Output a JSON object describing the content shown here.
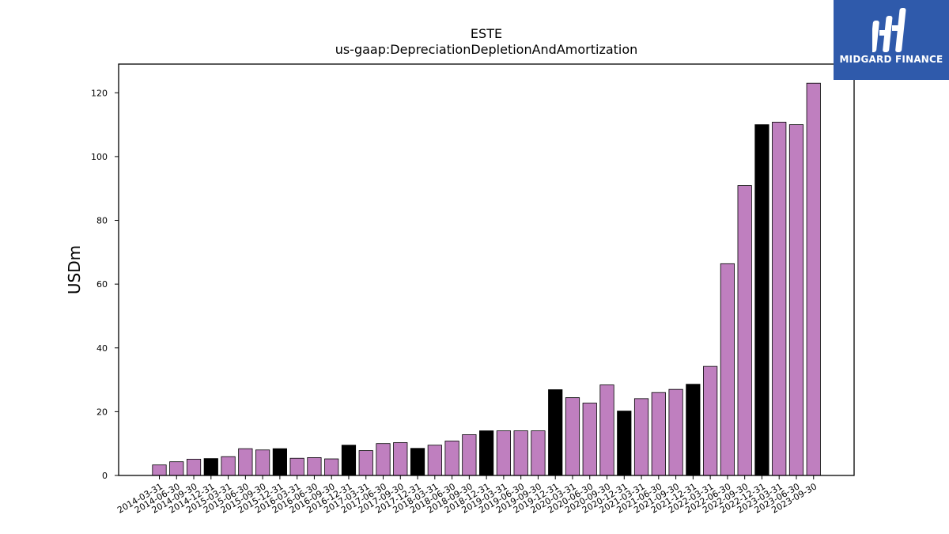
{
  "chart_data": {
    "type": "bar",
    "title": "ESTE",
    "subtitle": "us-gaap:DepreciationDepletionAndAmortization",
    "ylabel": "USDm",
    "xlabel": "",
    "ylim": [
      0,
      129
    ],
    "yticks": [
      0,
      20,
      40,
      60,
      80,
      100,
      120
    ],
    "grid": false,
    "categories": [
      "2014-03-31",
      "2014-06-30",
      "2014-09-30",
      "2014-12-31",
      "2015-03-31",
      "2015-06-30",
      "2015-09-30",
      "2015-12-31",
      "2016-03-31",
      "2016-06-30",
      "2016-09-30",
      "2016-12-31",
      "2017-03-31",
      "2017-06-30",
      "2017-09-30",
      "2017-12-31",
      "2018-03-31",
      "2018-06-30",
      "2018-09-30",
      "2018-12-31",
      "2019-03-31",
      "2019-06-30",
      "2019-09-30",
      "2019-12-31",
      "2020-03-31",
      "2020-06-30",
      "2020-09-30",
      "2020-12-31",
      "2021-03-31",
      "2021-06-30",
      "2021-09-30",
      "2021-12-31",
      "2022-03-31",
      "2022-06-30",
      "2022-09-30",
      "2022-12-31",
      "2023-03-31",
      "2023-06-30",
      "2023-09-30"
    ],
    "values": [
      3.3,
      4.3,
      5.1,
      5.3,
      5.9,
      8.4,
      8.0,
      8.4,
      5.4,
      5.6,
      5.2,
      9.5,
      7.8,
      10.0,
      10.3,
      8.5,
      9.5,
      10.8,
      12.8,
      14.0,
      14.0,
      14.0,
      14.0,
      26.9,
      24.4,
      22.7,
      28.4,
      20.2,
      24.1,
      26.0,
      27.0,
      28.6,
      34.2,
      66.4,
      90.9,
      110.0,
      110.8,
      110.0,
      123.0
    ],
    "bar_colors": [
      "#bf7fbf",
      "#bf7fbf",
      "#bf7fbf",
      "#000000",
      "#bf7fbf",
      "#bf7fbf",
      "#bf7fbf",
      "#000000",
      "#bf7fbf",
      "#bf7fbf",
      "#bf7fbf",
      "#000000",
      "#bf7fbf",
      "#bf7fbf",
      "#bf7fbf",
      "#000000",
      "#bf7fbf",
      "#bf7fbf",
      "#bf7fbf",
      "#000000",
      "#bf7fbf",
      "#bf7fbf",
      "#bf7fbf",
      "#000000",
      "#bf7fbf",
      "#bf7fbf",
      "#bf7fbf",
      "#000000",
      "#bf7fbf",
      "#bf7fbf",
      "#bf7fbf",
      "#000000",
      "#bf7fbf",
      "#bf7fbf",
      "#bf7fbf",
      "#000000",
      "#bf7fbf",
      "#bf7fbf",
      "#bf7fbf"
    ],
    "colors": {
      "quarter": "#bf7fbf",
      "year_end": "#000000"
    }
  },
  "logo": {
    "text": "MIDGARD FINANCE",
    "background": "#2f5aab",
    "icon": "midgard-logo-icon"
  }
}
